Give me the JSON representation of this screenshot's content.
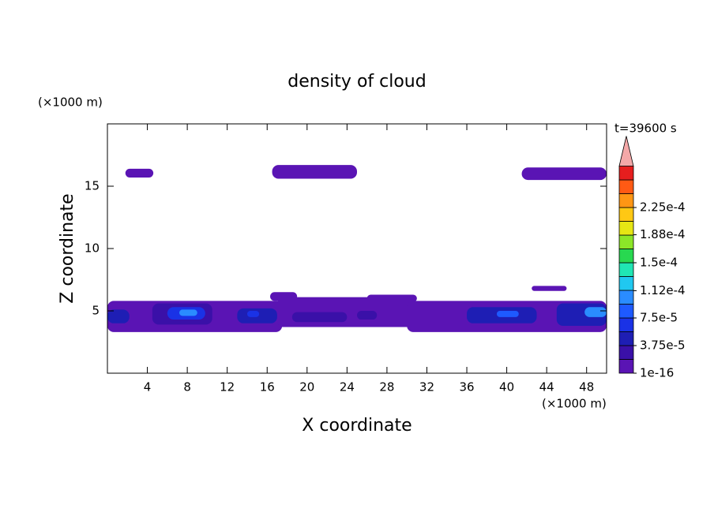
{
  "chart_data": {
    "type": "contour",
    "title": "density of cloud",
    "x_label": "X coordinate",
    "y_label": "Z coordinate",
    "x_unit": "(×1000 m)",
    "y_unit": "(×1000 m)",
    "time_label": "t=39600 s",
    "xlim": [
      0,
      50
    ],
    "ylim": [
      0,
      20
    ],
    "xticks": [
      4,
      8,
      12,
      16,
      20,
      24,
      28,
      32,
      36,
      40,
      44,
      48
    ],
    "yticks": [
      5,
      10,
      15
    ],
    "colorbar": {
      "ticks": [
        1e-16,
        {
          "value": 3.75e-05,
          "label": "3.75e-5"
        },
        {
          "value": 7.5e-05,
          "label": "7.5e-5"
        },
        {
          "value": 0.000112,
          "label": "1.12e-4"
        },
        {
          "value": 0.00015,
          "label": "1.5e-4"
        },
        {
          "value": 0.000188,
          "label": "1.88e-4"
        },
        {
          "value": 0.000225,
          "label": "2.25e-4"
        }
      ],
      "colors": [
        "#5a14b4",
        "#3a10a8",
        "#1e1eb4",
        "#1a32e6",
        "#1e5aff",
        "#2a8cff",
        "#20c8f0",
        "#20e6b4",
        "#28d850",
        "#8ce628",
        "#e6e614",
        "#ffc814",
        "#ff9614",
        "#ff5a14",
        "#e61e1e"
      ],
      "extend_color": "#f4a8a8"
    },
    "regions": [
      {
        "x": [
          0,
          17.5
        ],
        "z": [
          3.3,
          5.8
        ],
        "value": 1e-05
      },
      {
        "x": [
          17,
          30.5
        ],
        "z": [
          3.7,
          6.1
        ],
        "value": 1e-05
      },
      {
        "x": [
          30,
          50
        ],
        "z": [
          3.3,
          5.8
        ],
        "value": 1e-05
      },
      {
        "x": [
          0,
          2.2
        ],
        "z": [
          4,
          5.1
        ],
        "value": 4e-05
      },
      {
        "x": [
          4.5,
          10.5
        ],
        "z": [
          3.9,
          5.6
        ],
        "value": 3e-05
      },
      {
        "x": [
          6,
          9.8
        ],
        "z": [
          4.3,
          5.3
        ],
        "value": 6e-05
      },
      {
        "x": [
          7.2,
          9
        ],
        "z": [
          4.6,
          5.1
        ],
        "value": 0.0001
      },
      {
        "x": [
          13,
          17
        ],
        "z": [
          4,
          5.2
        ],
        "value": 4e-05
      },
      {
        "x": [
          14,
          15.2
        ],
        "z": [
          4.5,
          5
        ],
        "value": 7e-05
      },
      {
        "x": [
          18.5,
          24
        ],
        "z": [
          4.1,
          4.9
        ],
        "value": 2.5e-05
      },
      {
        "x": [
          25,
          27
        ],
        "z": [
          4.3,
          5
        ],
        "value": 2.5e-05
      },
      {
        "x": [
          36,
          43
        ],
        "z": [
          4,
          5.3
        ],
        "value": 4e-05
      },
      {
        "x": [
          39,
          41.2
        ],
        "z": [
          4.5,
          5
        ],
        "value": 8e-05
      },
      {
        "x": [
          45,
          50
        ],
        "z": [
          3.8,
          5.6
        ],
        "value": 4e-05
      },
      {
        "x": [
          47.8,
          50
        ],
        "z": [
          4.5,
          5.3
        ],
        "value": 0.0001
      },
      {
        "x": [
          1.8,
          4.6
        ],
        "z": [
          15.7,
          16.4
        ],
        "value": 1e-05
      },
      {
        "x": [
          16.5,
          25
        ],
        "z": [
          15.6,
          16.7
        ],
        "value": 1e-05
      },
      {
        "x": [
          41.5,
          50
        ],
        "z": [
          15.5,
          16.5
        ],
        "value": 1e-05
      },
      {
        "x": [
          16.3,
          19
        ],
        "z": [
          5.8,
          6.5
        ],
        "value": 1e-05
      },
      {
        "x": [
          26,
          31
        ],
        "z": [
          5.7,
          6.3
        ],
        "value": 1e-05
      },
      {
        "x": [
          42.5,
          46
        ],
        "z": [
          6.6,
          7
        ],
        "value": 1e-05
      }
    ]
  }
}
